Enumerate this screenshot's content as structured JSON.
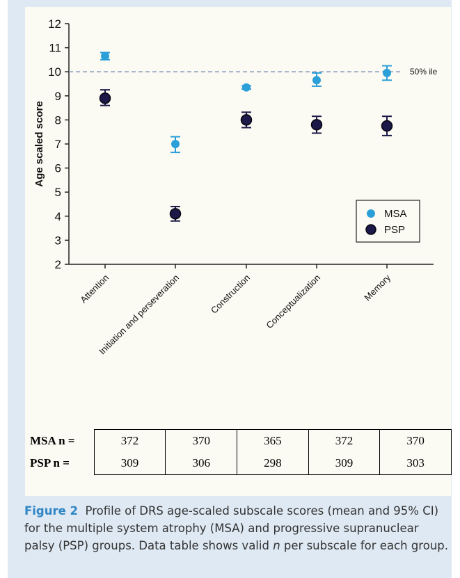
{
  "chart_data": {
    "type": "scatter",
    "subtype": "point-with-error-bars",
    "categories": [
      "Attention",
      "Initiation and perseveration",
      "Construction",
      "Conceptualization",
      "Memory"
    ],
    "series": [
      {
        "name": "MSA",
        "color": "#2b9fd8",
        "values": [
          10.65,
          7.0,
          9.35,
          9.65,
          9.95
        ],
        "ci_low": [
          10.5,
          6.65,
          9.28,
          9.4,
          9.65
        ],
        "ci_high": [
          10.8,
          7.3,
          9.42,
          9.95,
          10.25
        ]
      },
      {
        "name": "PSP",
        "color": "#1c1848",
        "values": [
          8.9,
          4.1,
          8.0,
          7.8,
          7.75
        ],
        "ci_low": [
          8.6,
          3.8,
          7.68,
          7.45,
          7.35
        ],
        "ci_high": [
          9.25,
          4.4,
          8.32,
          8.15,
          8.15
        ]
      }
    ],
    "ylabel": "Age scaled score",
    "ylim": [
      2,
      12
    ],
    "yticks": [
      "2",
      "3",
      "4",
      "5",
      "6",
      "7",
      "8",
      "9",
      "10",
      "11",
      "12"
    ],
    "reference_line": {
      "value": 10,
      "label": "50% ile",
      "style": "dashed"
    },
    "legend_position": "bottom-right",
    "grid": false
  },
  "n_table": {
    "rows": [
      {
        "label": "MSA n =",
        "values": [
          "372",
          "370",
          "365",
          "372",
          "370"
        ]
      },
      {
        "label": "PSP n =",
        "values": [
          "309",
          "306",
          "298",
          "309",
          "303"
        ]
      }
    ]
  },
  "caption": {
    "figure_label": "Figure 2",
    "text_before_italic": "Profile of DRS age-scaled subscale scores (mean and 95% CI) for the multiple system atrophy (MSA) and progressive supranuclear palsy (PSP) groups. Data table shows valid ",
    "italic": "n",
    "text_after_italic": " per subscale for each group."
  }
}
